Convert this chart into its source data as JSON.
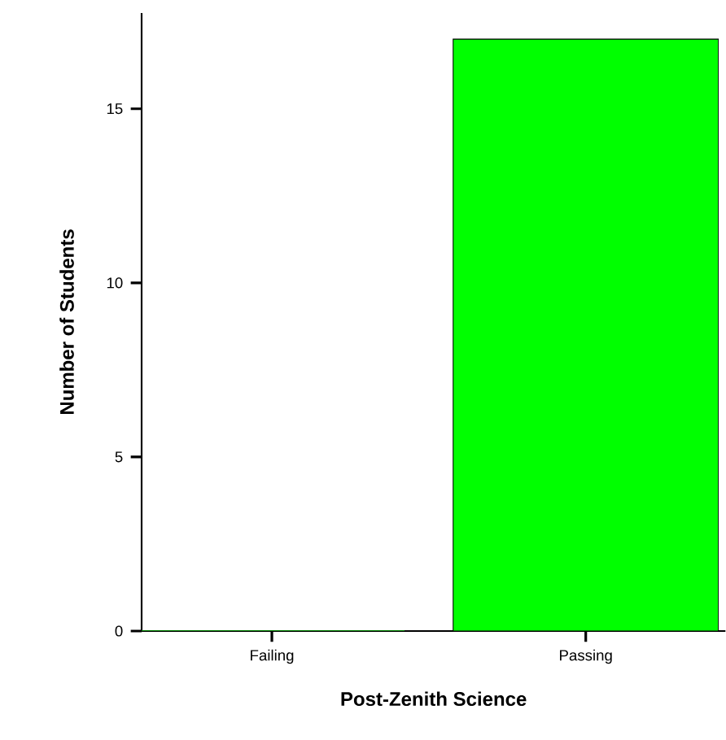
{
  "chart_data": {
    "type": "bar",
    "xlabel": "Post-Zenith Science",
    "ylabel": "Number of Students",
    "categories": [
      "Failing",
      "Passing"
    ],
    "values": [
      0,
      17
    ],
    "color": "#00ff00",
    "ylim": [
      0,
      17.75
    ],
    "yticks": [
      0,
      5,
      10,
      15
    ],
    "grid": false
  }
}
